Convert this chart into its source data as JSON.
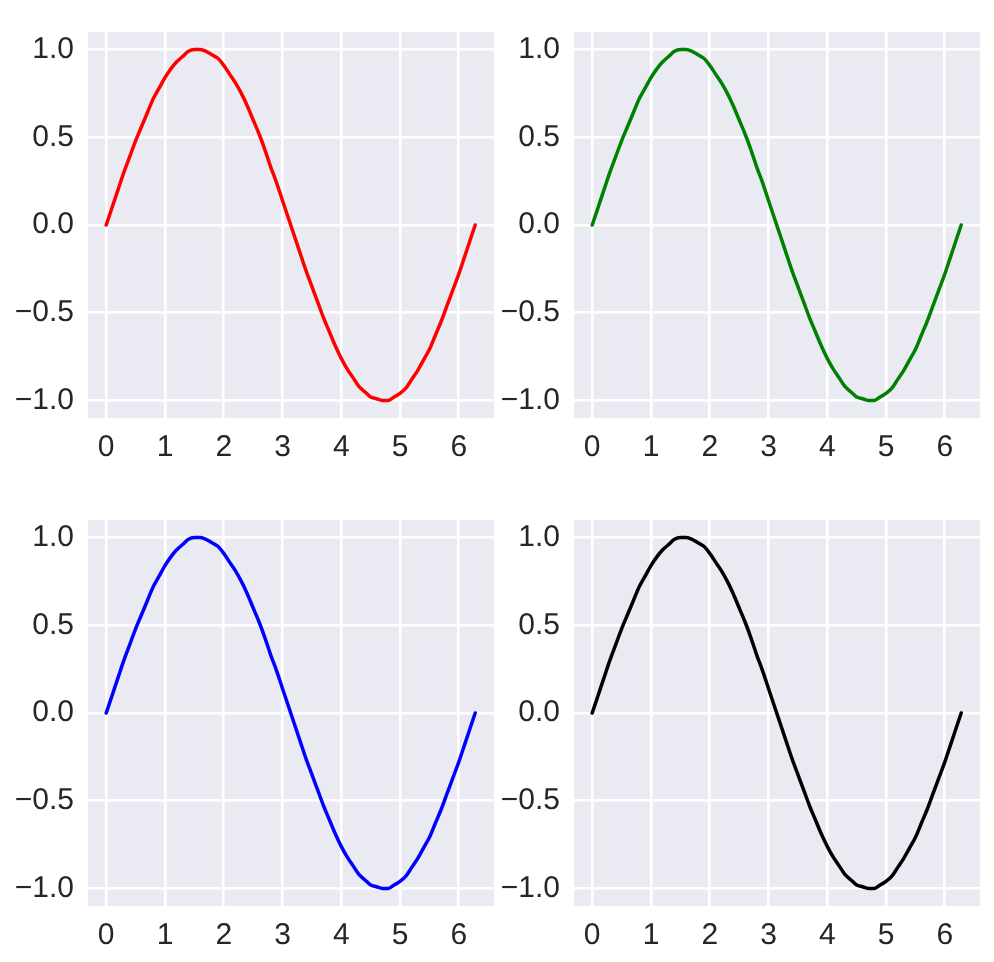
{
  "chart_data": [
    {
      "type": "line",
      "x": [
        0,
        0.1,
        0.2,
        0.3,
        0.4,
        0.5,
        0.6,
        0.7,
        0.8,
        0.9,
        1,
        1.1,
        1.2,
        1.3,
        1.4,
        1.5,
        1.6,
        1.7,
        1.8,
        1.9,
        2,
        2.1,
        2.2,
        2.3,
        2.4,
        2.5,
        2.6,
        2.7,
        2.8,
        2.9,
        3,
        3.1,
        3.2,
        3.3,
        3.4,
        3.5,
        3.6,
        3.7,
        3.8,
        3.9,
        4,
        4.1,
        4.2,
        4.3,
        4.4,
        4.5,
        4.6,
        4.7,
        4.8,
        4.9,
        5,
        5.1,
        5.2,
        5.3,
        5.4,
        5.5,
        5.6,
        5.7,
        5.8,
        5.9,
        6,
        6.1,
        6.2,
        6.28
      ],
      "series": [
        {
          "color": "#ff0000",
          "values": [
            0,
            0.1,
            0.2,
            0.3,
            0.39,
            0.48,
            0.56,
            0.64,
            0.72,
            0.78,
            0.84,
            0.89,
            0.93,
            0.96,
            0.99,
            1.0,
            1.0,
            0.99,
            0.97,
            0.95,
            0.91,
            0.86,
            0.81,
            0.75,
            0.68,
            0.6,
            0.52,
            0.43,
            0.33,
            0.24,
            0.14,
            0.04,
            -0.06,
            -0.16,
            -0.26,
            -0.35,
            -0.44,
            -0.53,
            -0.61,
            -0.69,
            -0.76,
            -0.82,
            -0.87,
            -0.92,
            -0.95,
            -0.98,
            -0.99,
            -1.0,
            -1.0,
            -0.98,
            -0.96,
            -0.93,
            -0.88,
            -0.83,
            -0.77,
            -0.71,
            -0.63,
            -0.55,
            -0.46,
            -0.37,
            -0.28,
            -0.18,
            -0.08,
            0
          ]
        }
      ],
      "xlim": [
        -0.31,
        6.6
      ],
      "ylim": [
        -1.1,
        1.1
      ],
      "xticks": [
        0,
        1,
        2,
        3,
        4,
        5,
        6
      ],
      "yticks": [
        {
          "value": -1,
          "label": "−1.0"
        },
        {
          "value": -0.5,
          "label": "−0.5"
        },
        {
          "value": 0,
          "label": "0.0"
        },
        {
          "value": 0.5,
          "label": "0.5"
        },
        {
          "value": 1,
          "label": "1.0"
        }
      ],
      "grid": true
    },
    {
      "type": "line",
      "x": [
        0,
        0.1,
        0.2,
        0.3,
        0.4,
        0.5,
        0.6,
        0.7,
        0.8,
        0.9,
        1,
        1.1,
        1.2,
        1.3,
        1.4,
        1.5,
        1.6,
        1.7,
        1.8,
        1.9,
        2,
        2.1,
        2.2,
        2.3,
        2.4,
        2.5,
        2.6,
        2.7,
        2.8,
        2.9,
        3,
        3.1,
        3.2,
        3.3,
        3.4,
        3.5,
        3.6,
        3.7,
        3.8,
        3.9,
        4,
        4.1,
        4.2,
        4.3,
        4.4,
        4.5,
        4.6,
        4.7,
        4.8,
        4.9,
        5,
        5.1,
        5.2,
        5.3,
        5.4,
        5.5,
        5.6,
        5.7,
        5.8,
        5.9,
        6,
        6.1,
        6.2,
        6.28
      ],
      "series": [
        {
          "color": "#008000",
          "values": [
            0,
            0.1,
            0.2,
            0.3,
            0.39,
            0.48,
            0.56,
            0.64,
            0.72,
            0.78,
            0.84,
            0.89,
            0.93,
            0.96,
            0.99,
            1.0,
            1.0,
            0.99,
            0.97,
            0.95,
            0.91,
            0.86,
            0.81,
            0.75,
            0.68,
            0.6,
            0.52,
            0.43,
            0.33,
            0.24,
            0.14,
            0.04,
            -0.06,
            -0.16,
            -0.26,
            -0.35,
            -0.44,
            -0.53,
            -0.61,
            -0.69,
            -0.76,
            -0.82,
            -0.87,
            -0.92,
            -0.95,
            -0.98,
            -0.99,
            -1.0,
            -1.0,
            -0.98,
            -0.96,
            -0.93,
            -0.88,
            -0.83,
            -0.77,
            -0.71,
            -0.63,
            -0.55,
            -0.46,
            -0.37,
            -0.28,
            -0.18,
            -0.08,
            0
          ]
        }
      ],
      "xlim": [
        -0.31,
        6.6
      ],
      "ylim": [
        -1.1,
        1.1
      ],
      "xticks": [
        0,
        1,
        2,
        3,
        4,
        5,
        6
      ],
      "yticks": [
        {
          "value": -1,
          "label": "−1.0"
        },
        {
          "value": -0.5,
          "label": "−0.5"
        },
        {
          "value": 0,
          "label": "0.0"
        },
        {
          "value": 0.5,
          "label": "0.5"
        },
        {
          "value": 1,
          "label": "1.0"
        }
      ],
      "grid": true
    },
    {
      "type": "line",
      "x": [
        0,
        0.1,
        0.2,
        0.3,
        0.4,
        0.5,
        0.6,
        0.7,
        0.8,
        0.9,
        1,
        1.1,
        1.2,
        1.3,
        1.4,
        1.5,
        1.6,
        1.7,
        1.8,
        1.9,
        2,
        2.1,
        2.2,
        2.3,
        2.4,
        2.5,
        2.6,
        2.7,
        2.8,
        2.9,
        3,
        3.1,
        3.2,
        3.3,
        3.4,
        3.5,
        3.6,
        3.7,
        3.8,
        3.9,
        4,
        4.1,
        4.2,
        4.3,
        4.4,
        4.5,
        4.6,
        4.7,
        4.8,
        4.9,
        5,
        5.1,
        5.2,
        5.3,
        5.4,
        5.5,
        5.6,
        5.7,
        5.8,
        5.9,
        6,
        6.1,
        6.2,
        6.28
      ],
      "series": [
        {
          "color": "#0000ff",
          "values": [
            0,
            0.1,
            0.2,
            0.3,
            0.39,
            0.48,
            0.56,
            0.64,
            0.72,
            0.78,
            0.84,
            0.89,
            0.93,
            0.96,
            0.99,
            1.0,
            1.0,
            0.99,
            0.97,
            0.95,
            0.91,
            0.86,
            0.81,
            0.75,
            0.68,
            0.6,
            0.52,
            0.43,
            0.33,
            0.24,
            0.14,
            0.04,
            -0.06,
            -0.16,
            -0.26,
            -0.35,
            -0.44,
            -0.53,
            -0.61,
            -0.69,
            -0.76,
            -0.82,
            -0.87,
            -0.92,
            -0.95,
            -0.98,
            -0.99,
            -1.0,
            -1.0,
            -0.98,
            -0.96,
            -0.93,
            -0.88,
            -0.83,
            -0.77,
            -0.71,
            -0.63,
            -0.55,
            -0.46,
            -0.37,
            -0.28,
            -0.18,
            -0.08,
            0
          ]
        }
      ],
      "xlim": [
        -0.31,
        6.6
      ],
      "ylim": [
        -1.1,
        1.1
      ],
      "xticks": [
        0,
        1,
        2,
        3,
        4,
        5,
        6
      ],
      "yticks": [
        {
          "value": -1,
          "label": "−1.0"
        },
        {
          "value": -0.5,
          "label": "−0.5"
        },
        {
          "value": 0,
          "label": "0.0"
        },
        {
          "value": 0.5,
          "label": "0.5"
        },
        {
          "value": 1,
          "label": "1.0"
        }
      ],
      "grid": true
    },
    {
      "type": "line",
      "x": [
        0,
        0.1,
        0.2,
        0.3,
        0.4,
        0.5,
        0.6,
        0.7,
        0.8,
        0.9,
        1,
        1.1,
        1.2,
        1.3,
        1.4,
        1.5,
        1.6,
        1.7,
        1.8,
        1.9,
        2,
        2.1,
        2.2,
        2.3,
        2.4,
        2.5,
        2.6,
        2.7,
        2.8,
        2.9,
        3,
        3.1,
        3.2,
        3.3,
        3.4,
        3.5,
        3.6,
        3.7,
        3.8,
        3.9,
        4,
        4.1,
        4.2,
        4.3,
        4.4,
        4.5,
        4.6,
        4.7,
        4.8,
        4.9,
        5,
        5.1,
        5.2,
        5.3,
        5.4,
        5.5,
        5.6,
        5.7,
        5.8,
        5.9,
        6,
        6.1,
        6.2,
        6.28
      ],
      "series": [
        {
          "color": "#000000",
          "values": [
            0,
            0.1,
            0.2,
            0.3,
            0.39,
            0.48,
            0.56,
            0.64,
            0.72,
            0.78,
            0.84,
            0.89,
            0.93,
            0.96,
            0.99,
            1.0,
            1.0,
            0.99,
            0.97,
            0.95,
            0.91,
            0.86,
            0.81,
            0.75,
            0.68,
            0.6,
            0.52,
            0.43,
            0.33,
            0.24,
            0.14,
            0.04,
            -0.06,
            -0.16,
            -0.26,
            -0.35,
            -0.44,
            -0.53,
            -0.61,
            -0.69,
            -0.76,
            -0.82,
            -0.87,
            -0.92,
            -0.95,
            -0.98,
            -0.99,
            -1.0,
            -1.0,
            -0.98,
            -0.96,
            -0.93,
            -0.88,
            -0.83,
            -0.77,
            -0.71,
            -0.63,
            -0.55,
            -0.46,
            -0.37,
            -0.28,
            -0.18,
            -0.08,
            0
          ]
        }
      ],
      "xlim": [
        -0.31,
        6.6
      ],
      "ylim": [
        -1.1,
        1.1
      ],
      "xticks": [
        0,
        1,
        2,
        3,
        4,
        5,
        6
      ],
      "yticks": [
        {
          "value": -1,
          "label": "−1.0"
        },
        {
          "value": -0.5,
          "label": "−0.5"
        },
        {
          "value": 0,
          "label": "0.0"
        },
        {
          "value": 0.5,
          "label": "0.5"
        },
        {
          "value": 1,
          "label": "1.0"
        }
      ],
      "grid": true
    }
  ]
}
